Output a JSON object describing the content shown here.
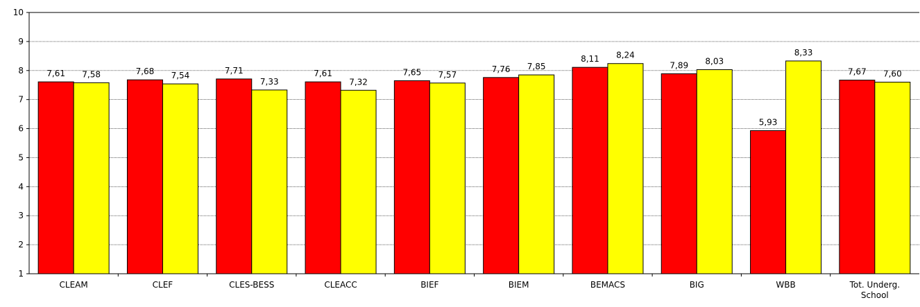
{
  "chart_data": {
    "type": "bar",
    "title": "",
    "xlabel": "",
    "ylabel": "",
    "ylim": [
      1,
      10
    ],
    "yticks": [
      1,
      2,
      3,
      4,
      5,
      6,
      7,
      8,
      9,
      10
    ],
    "grid": true,
    "legend": "none",
    "categories": [
      [
        "CLEAM"
      ],
      [
        "CLEF"
      ],
      [
        "CLES-BESS"
      ],
      [
        "CLEACC"
      ],
      [
        "BIEF"
      ],
      [
        "BIEM"
      ],
      [
        "BEMACS"
      ],
      [
        "BIG"
      ],
      [
        "WBB"
      ],
      [
        "Tot. Underg.",
        "School"
      ]
    ],
    "series": [
      {
        "color": "#ff0000",
        "values": [
          7.61,
          7.68,
          7.71,
          7.61,
          7.65,
          7.76,
          8.11,
          7.89,
          5.93,
          7.67
        ],
        "labels": [
          "7,61",
          "7,68",
          "7,71",
          "7,61",
          "7,65",
          "7,76",
          "8,11",
          "7,89",
          "5,93",
          "7,67"
        ]
      },
      {
        "color": "#ffff00",
        "values": [
          7.58,
          7.54,
          7.33,
          7.32,
          7.57,
          7.85,
          8.24,
          8.03,
          8.33,
          7.6
        ],
        "labels": [
          "7,58",
          "7,54",
          "7,33",
          "7,32",
          "7,57",
          "7,85",
          "8,24",
          "8,03",
          "8,33",
          "7,60"
        ]
      }
    ]
  }
}
